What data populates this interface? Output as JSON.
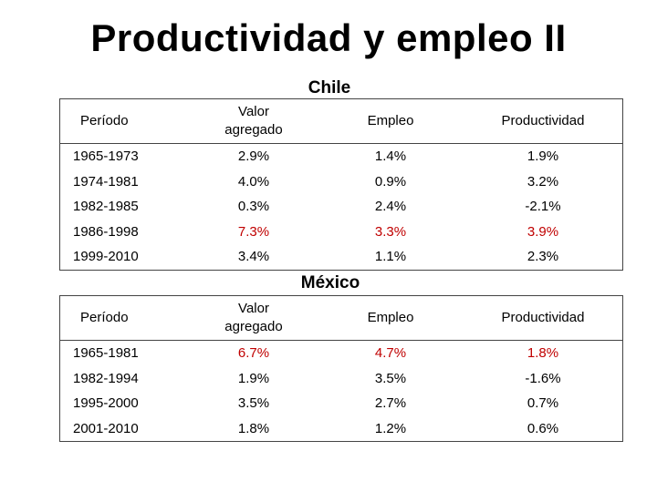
{
  "title": "Productividad y empleo II",
  "colors": {
    "highlight": "#c00000",
    "text": "#000000"
  },
  "chile": {
    "caption": "Chile",
    "headers": [
      "Período",
      "Valor agregado",
      "Empleo",
      "Productividad"
    ],
    "rows": [
      {
        "period": "1965-1973",
        "valor": "2.9%",
        "empleo": "1.4%",
        "productividad": "1.9%",
        "highlight": false
      },
      {
        "period": "1974-1981",
        "valor": "4.0%",
        "empleo": "0.9%",
        "productividad": "3.2%",
        "highlight": false
      },
      {
        "period": "1982-1985",
        "valor": "0.3%",
        "empleo": "2.4%",
        "productividad": "-2.1%",
        "highlight": false
      },
      {
        "period": "1986-1998",
        "valor": "7.3%",
        "empleo": "3.3%",
        "productividad": "3.9%",
        "highlight": true
      },
      {
        "period": "1999-2010",
        "valor": "3.4%",
        "empleo": "1.1%",
        "productividad": "2.3%",
        "highlight": false
      }
    ]
  },
  "mexico": {
    "caption": "México",
    "headers": [
      "Período",
      "Valor agregado",
      "Empleo",
      "Productividad"
    ],
    "rows": [
      {
        "period": "1965-1981",
        "valor": "6.7%",
        "empleo": "4.7%",
        "productividad": "1.8%",
        "highlight": true
      },
      {
        "period": "1982-1994",
        "valor": "1.9%",
        "empleo": "3.5%",
        "productividad": "-1.6%",
        "highlight": false
      },
      {
        "period": "1995-2000",
        "valor": "3.5%",
        "empleo": "2.7%",
        "productividad": "0.7%",
        "highlight": false
      },
      {
        "period": "2001-2010",
        "valor": "1.8%",
        "empleo": "1.2%",
        "productividad": "0.6%",
        "highlight": false
      }
    ]
  }
}
